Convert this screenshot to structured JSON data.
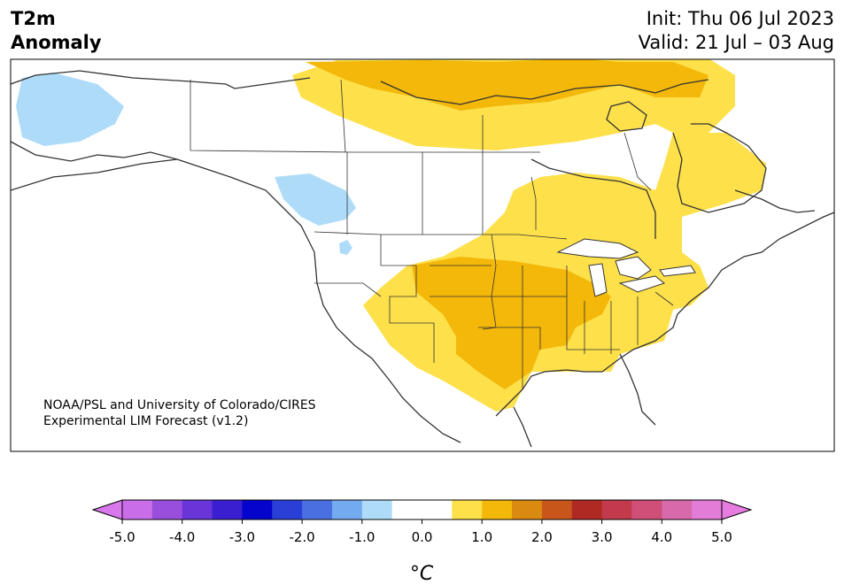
{
  "title": {
    "left_line1": "T2m",
    "left_line2": "Anomaly",
    "init": "Init: Thu 06 Jul 2023",
    "valid": "Valid: 21 Jul – 03 Aug"
  },
  "credit": {
    "line1": "NOAA/PSL and University of Colorado/CIRES",
    "line2": "Experimental LIM Forecast (v1.2)"
  },
  "colorbar": {
    "unit_label": "°C",
    "ticks": [
      "-5.0",
      "-4.0",
      "-3.0",
      "-2.0",
      "-1.0",
      "0.0",
      "1.0",
      "2.0",
      "3.0",
      "4.0",
      "5.0"
    ],
    "colors": [
      "#c96de8",
      "#9a4fdc",
      "#6a35d8",
      "#3a1fd0",
      "#0404cc",
      "#2a3fd6",
      "#4a6fe0",
      "#74aaf0",
      "#aedcf8",
      "#ffffff",
      "#ffffff",
      "#fde04a",
      "#f3b80a",
      "#d98a10",
      "#c8561a",
      "#b02a24",
      "#c23a4c",
      "#cf4f78",
      "#d76aaa",
      "#e27cd6"
    ],
    "under_color": "#d977ec",
    "over_color": "#e77be0"
  },
  "legend_colors": {
    "cold_light": "#aedcf8",
    "warm_light": "#fde04a",
    "warm_mid": "#f3b80a"
  }
}
